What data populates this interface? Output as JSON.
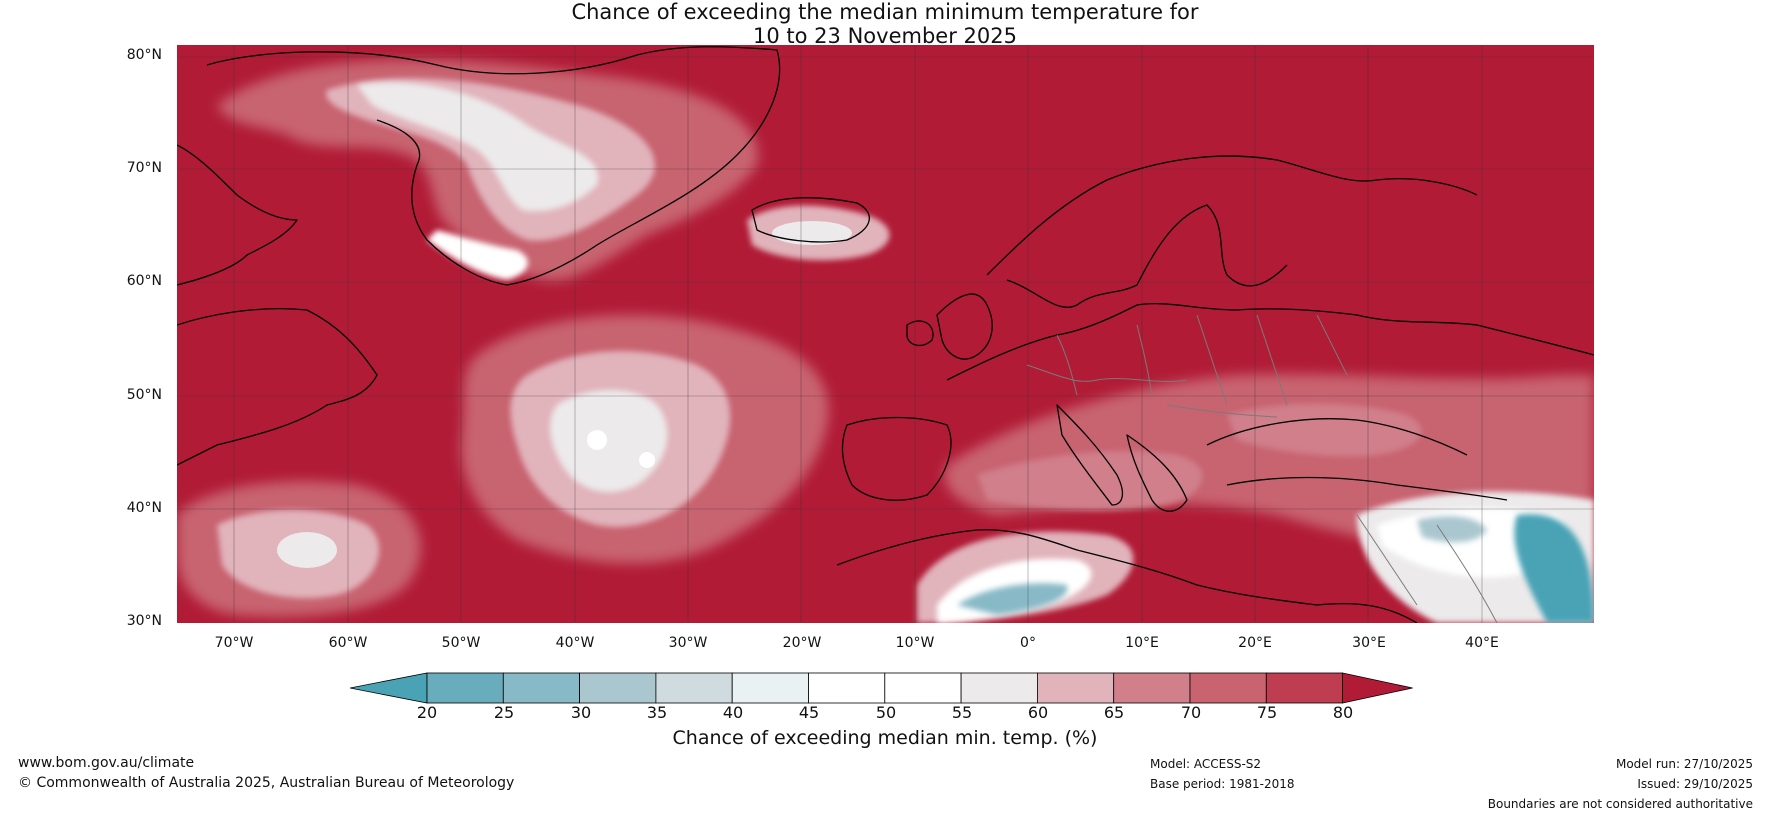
{
  "title": {
    "line1": "Chance of exceeding the median minimum temperature for",
    "line2": "10 to 23 November 2025"
  },
  "map": {
    "lat_labels": [
      "80°N",
      "70°N",
      "60°N",
      "50°N",
      "40°N",
      "30°N"
    ],
    "lon_labels": [
      "70°W",
      "60°W",
      "50°W",
      "40°W",
      "30°W",
      "20°W",
      "10°W",
      "0°",
      "10°E",
      "20°E",
      "30°E",
      "40°E"
    ],
    "base_color": "#b11b36",
    "region_levels": {
      "greenland_interior": "45-60",
      "mid_atlantic_40_50N": "55-70",
      "iceland": "55-65",
      "north_africa": "25-45",
      "middle_east": "20-40",
      "subtropical_atlantic_35N": "55-65"
    }
  },
  "colorbar": {
    "tick_labels": [
      "20",
      "25",
      "30",
      "35",
      "40",
      "45",
      "50",
      "55",
      "60",
      "65",
      "70",
      "75",
      "80"
    ],
    "colors": [
      "#4aa3b5",
      "#69acbb",
      "#88b9c6",
      "#aac7cf",
      "#cfdbdf",
      "#eaf1f3",
      "#ffffff",
      "#ffffff",
      "#eceaeb",
      "#e1b3bb",
      "#d07f8b",
      "#c8636f",
      "#be3d50",
      "#b11b36"
    ],
    "title": "Chance of exceeding median min. temp. (%)"
  },
  "footer": {
    "url": "www.bom.gov.au/climate",
    "copyright": "© Commonwealth of Australia 2025, Australian Bureau of Meteorology",
    "model": "Model: ACCESS-S2",
    "base_period": "Base period: 1981-2018",
    "model_run": "Model run: 27/10/2025",
    "issued": "Issued: 29/10/2025",
    "disclaimer": "Boundaries are not considered authoritative"
  }
}
